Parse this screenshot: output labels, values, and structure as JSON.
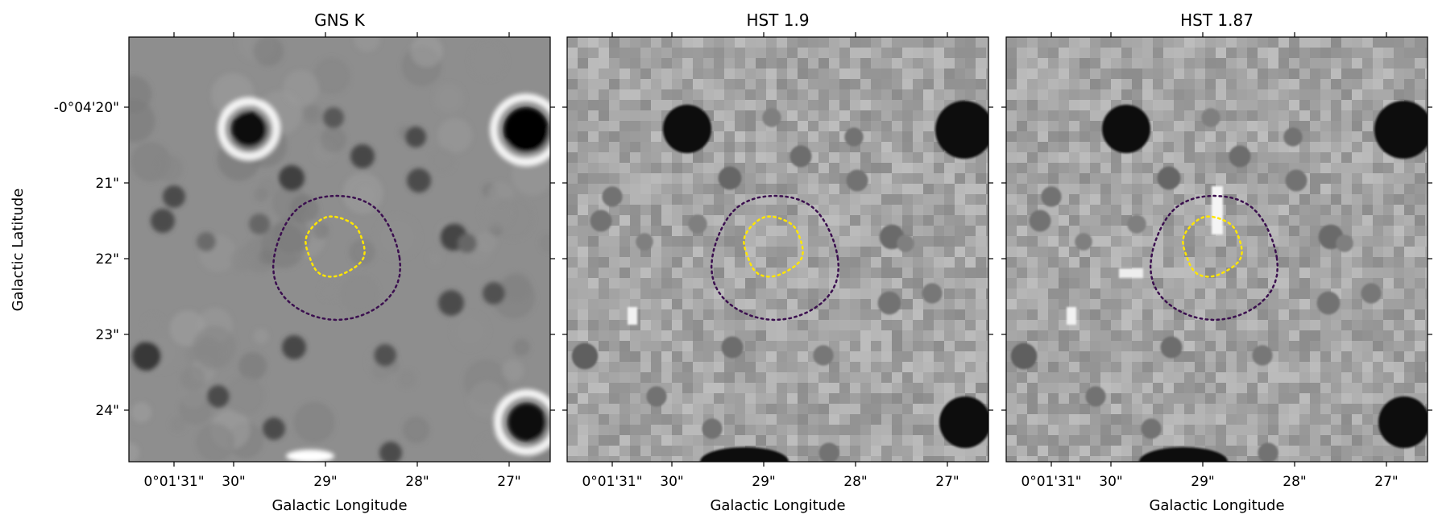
{
  "colors": {
    "background": "#ffffff",
    "axis": "#000000",
    "outer_contour": "#3b0f4f",
    "inner_contour": "#ffe600"
  },
  "y_axis": {
    "label": "Galactic Latitude",
    "ticks": [
      {
        "value": -4.333333,
        "label": "-0°04'20\""
      },
      {
        "value": -4.35,
        "label": "21\""
      },
      {
        "value": -4.366667,
        "label": "22\""
      },
      {
        "value": -4.383333,
        "label": "23\""
      },
      {
        "value": -4.4,
        "label": "24\""
      }
    ]
  },
  "chart_data": [
    {
      "type": "heatmap",
      "title": "GNS K",
      "colormap": "gray",
      "grid": false,
      "xlabel": "Galactic Longitude",
      "ylabel": "Galactic Latitude",
      "x_ticks": [
        "0°01'31\"",
        "30\"",
        "29\"",
        "28\"",
        "27\""
      ],
      "y_ticks": [
        "-0°04'20\"",
        "21\"",
        "22\"",
        "23\"",
        "24\""
      ],
      "show_y_ticklabels": true,
      "contours": [
        {
          "level": "outer",
          "color": "#3b0f4f",
          "style": "dotted"
        },
        {
          "level": "inner",
          "color": "#ffe600",
          "style": "dotted"
        }
      ]
    },
    {
      "type": "heatmap",
      "title": "HST 1.9",
      "colormap": "gray",
      "grid": false,
      "xlabel": "Galactic Longitude",
      "x_ticks": [
        "0°01'31\"",
        "30\"",
        "29\"",
        "28\"",
        "27\""
      ],
      "show_y_ticklabels": false,
      "contours": [
        {
          "level": "outer",
          "color": "#3b0f4f",
          "style": "dotted"
        },
        {
          "level": "inner",
          "color": "#ffe600",
          "style": "dotted"
        }
      ]
    },
    {
      "type": "heatmap",
      "title": "HST 1.87",
      "colormap": "gray",
      "grid": false,
      "xlabel": "Galactic Longitude",
      "x_ticks": [
        "0°01'31\"",
        "30\"",
        "29\"",
        "28\"",
        "27\""
      ],
      "show_y_ticklabels": false,
      "contours": [
        {
          "level": "outer",
          "color": "#3b0f4f",
          "style": "dotted"
        },
        {
          "level": "inner",
          "color": "#ffe600",
          "style": "dotted"
        }
      ]
    }
  ]
}
